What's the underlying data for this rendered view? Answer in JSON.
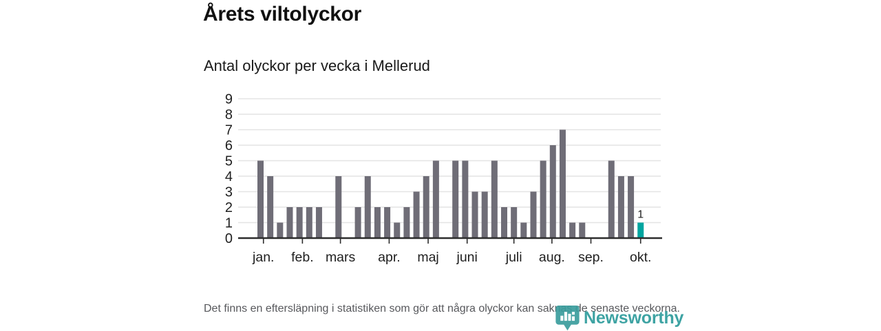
{
  "logo": {
    "wordmark": "Newsworthy",
    "color": "#2e9c9c"
  },
  "chart_data": {
    "type": "bar",
    "title": "Årets viltolyckor",
    "subtitle": "Antal olyckor per vecka i Mellerud",
    "footnote": "Det finns en eftersläpning i statistiken som gör att några olyckor kan saknas de senaste veckorna.",
    "values": [
      5,
      4,
      1,
      2,
      2,
      2,
      2,
      0,
      4,
      0,
      2,
      4,
      2,
      2,
      1,
      2,
      3,
      4,
      5,
      0,
      5,
      5,
      3,
      3,
      5,
      2,
      2,
      1,
      3,
      5,
      6,
      7,
      1,
      1,
      0,
      0,
      5,
      4,
      4,
      1
    ],
    "highlight": {
      "index": 39,
      "label": "1",
      "color": "#00a5a0"
    },
    "bar_color": "#6f6d77",
    "ylim": [
      0,
      9
    ],
    "yticks": [
      0,
      1,
      2,
      3,
      4,
      5,
      6,
      7,
      8,
      9
    ],
    "month_ticks": [
      {
        "label": "jan.",
        "week": 0.3
      },
      {
        "label": "feb.",
        "week": 4.3
      },
      {
        "label": "mars",
        "week": 8.2
      },
      {
        "label": "apr.",
        "week": 13.2
      },
      {
        "label": "maj",
        "week": 17.2
      },
      {
        "label": "juni",
        "week": 21.2
      },
      {
        "label": "juli",
        "week": 26.0
      },
      {
        "label": "aug.",
        "week": 29.9
      },
      {
        "label": "sep.",
        "week": 33.9
      },
      {
        "label": "okt.",
        "week": 39.0
      }
    ],
    "grid_color": "#e4e4e4",
    "axis_color": "#2d2d2d",
    "label_color": "#1f1f1f",
    "legend": "none",
    "grid": "horizontal"
  }
}
